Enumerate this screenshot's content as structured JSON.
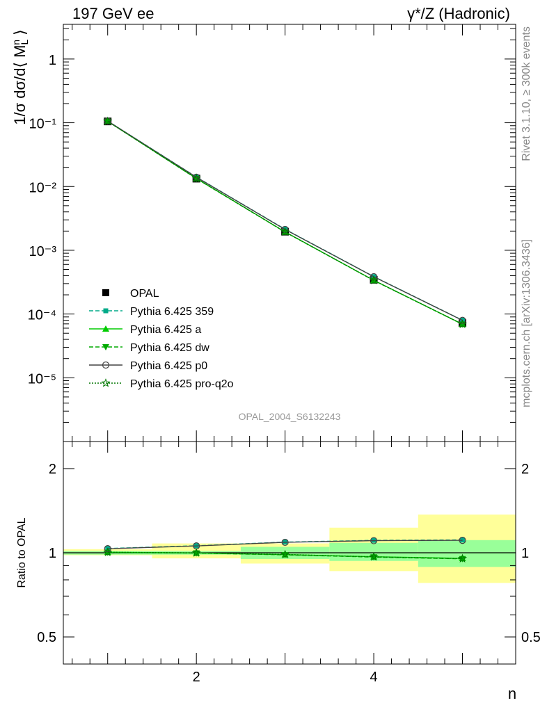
{
  "header": {
    "left": "197 GeV ee",
    "right": "γ*/Z (Hadronic)"
  },
  "side_labels": {
    "rivet": "Rivet 3.1.10, ≥ 300k events",
    "mcplots": "mcplots.cern.ch [arXiv:1306.3436]"
  },
  "analysis_label": "OPAL_2004_S6132243",
  "colors": {
    "band_inner": "#99ff99",
    "band_outer": "#ffff99",
    "data": "#000000",
    "p359": "#00aa88",
    "pa": "#00cc00",
    "pdw": "#00aa00",
    "pp0": "#444444",
    "pq2o": "#007700"
  },
  "chart_data": [
    {
      "type": "line",
      "panel": "main",
      "ylabel": "1/σ dσ/d⟨ M_L^n ⟩",
      "yscale": "log",
      "ylim": [
        1e-06,
        3.5
      ],
      "xlim": [
        0.5,
        5.6
      ],
      "ytick_labels": [
        "10⁻⁵",
        "10⁻⁴",
        "10⁻³",
        "10⁻²",
        "10⁻¹",
        "1"
      ],
      "x": [
        1,
        2,
        3,
        4,
        5
      ],
      "series": [
        {
          "name": "OPAL",
          "values": [
            0.105,
            0.0133,
            0.00196,
            0.000345,
            7.2e-05
          ],
          "marker": "square"
        },
        {
          "name": "Pythia 6.425 359",
          "values": [
            0.1065,
            0.0141,
            0.00214,
            0.000387,
            8e-05
          ],
          "marker": "square-small",
          "dash": "dashed"
        },
        {
          "name": "Pythia 6.425 a",
          "values": [
            0.1055,
            0.0134,
            0.00194,
            0.000338,
            6.95e-05
          ],
          "marker": "triangle-up",
          "dash": "solid"
        },
        {
          "name": "Pythia 6.425 dw",
          "values": [
            0.1053,
            0.0133,
            0.00193,
            0.000336,
            6.9e-05
          ],
          "marker": "triangle-down",
          "dash": "dashed"
        },
        {
          "name": "Pythia 6.425 p0",
          "values": [
            0.1063,
            0.014,
            0.00212,
            0.000385,
            7.95e-05
          ],
          "marker": "circle-open",
          "dash": "solid"
        },
        {
          "name": "Pythia 6.425 pro-q2o",
          "values": [
            0.1054,
            0.0134,
            0.00194,
            0.000337,
            6.92e-05
          ],
          "marker": "star",
          "dash": "dotted"
        }
      ]
    },
    {
      "type": "line",
      "panel": "ratio",
      "xlabel": "n",
      "ylabel": "Ratio to OPAL",
      "yscale": "log",
      "ylim": [
        0.4,
        2.5
      ],
      "xlim": [
        0.5,
        5.6
      ],
      "xtick_labels": [
        "2",
        "4"
      ],
      "ytick_labels": [
        "0.5",
        "1",
        "2"
      ],
      "x": [
        1,
        2,
        3,
        4,
        5
      ],
      "bins": [
        [
          0.5,
          1.5
        ],
        [
          1.5,
          2.5
        ],
        [
          2.5,
          3.5
        ],
        [
          3.5,
          4.5
        ],
        [
          4.5,
          5.6
        ]
      ],
      "band_inner": [
        [
          0.985,
          1.015
        ],
        [
          0.985,
          1.015
        ],
        [
          0.95,
          1.05
        ],
        [
          0.935,
          1.085
        ],
        [
          0.89,
          1.11
        ]
      ],
      "band_outer": [
        [
          0.98,
          1.03
        ],
        [
          0.955,
          1.08
        ],
        [
          0.915,
          1.08
        ],
        [
          0.86,
          1.23
        ],
        [
          0.78,
          1.37
        ]
      ],
      "series": [
        {
          "name": "Pythia 6.425 359",
          "values": [
            1.036,
            1.06,
            1.092,
            1.108,
            1.112
          ]
        },
        {
          "name": "Pythia 6.425 a",
          "values": [
            1.004,
            0.998,
            0.985,
            0.968,
            0.955
          ]
        },
        {
          "name": "Pythia 6.425 dw",
          "values": [
            1.003,
            0.997,
            0.983,
            0.965,
            0.951
          ]
        },
        {
          "name": "Pythia 6.425 p0",
          "values": [
            1.034,
            1.058,
            1.09,
            1.105,
            1.108
          ]
        },
        {
          "name": "Pythia 6.425 pro-q2o",
          "values": [
            1.004,
            0.999,
            0.986,
            0.967,
            0.953
          ]
        }
      ]
    }
  ]
}
